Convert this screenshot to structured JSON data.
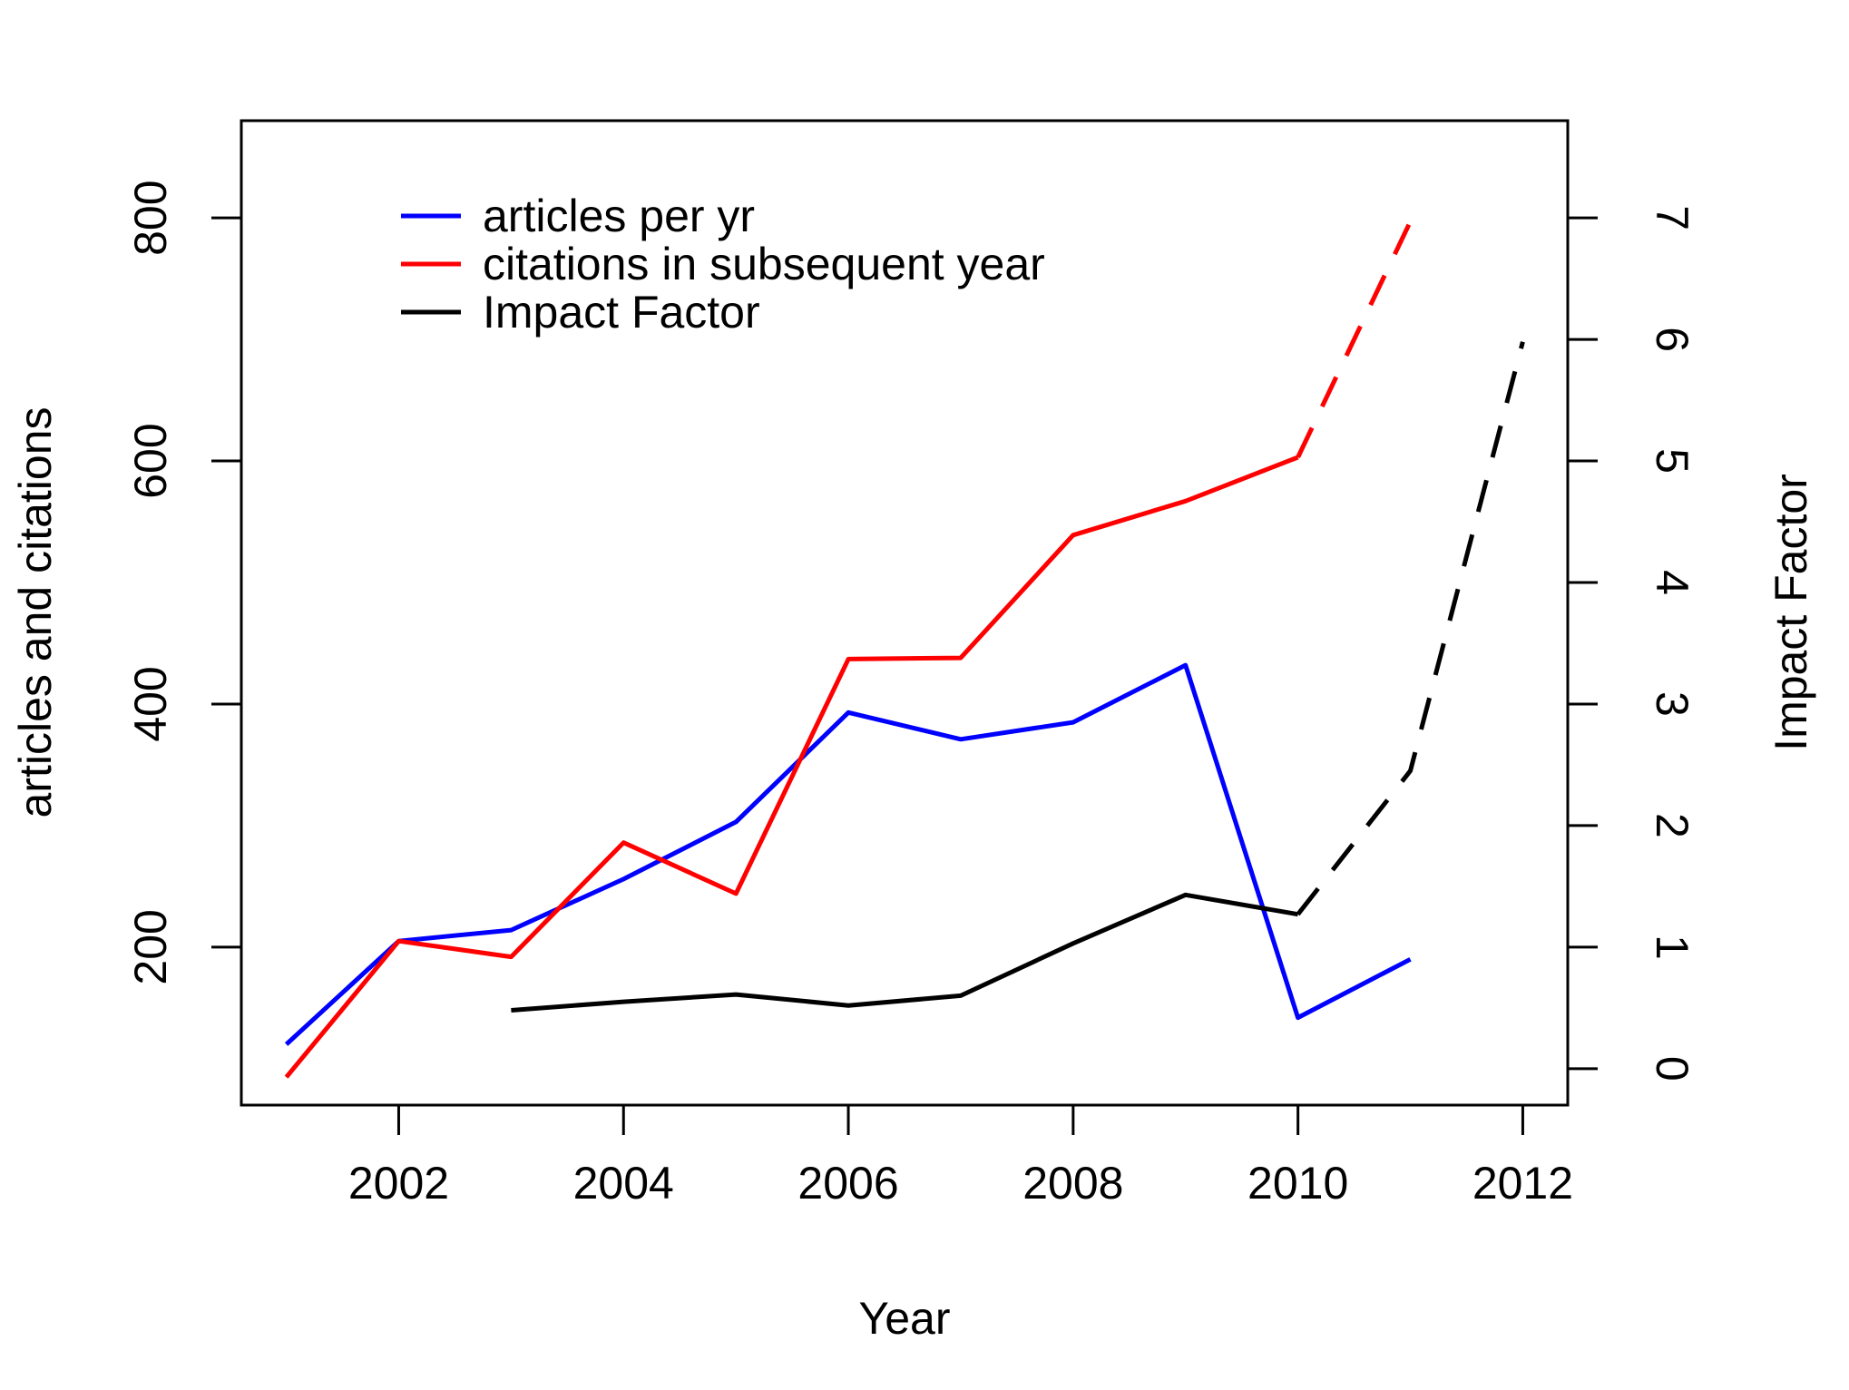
{
  "chart_data": {
    "type": "line",
    "xlabel": "Year",
    "ylabel": "articles and citations",
    "y2label": "Impact Factor",
    "xlim": [
      2000.6,
      2012.4
    ],
    "ylim": [
      70,
      880
    ],
    "y2lim": [
      -0.3,
      7.8
    ],
    "x_ticks": [
      2002,
      2004,
      2006,
      2008,
      2010,
      2012
    ],
    "y_ticks": [
      200,
      400,
      600,
      800
    ],
    "y2_ticks": [
      0,
      1,
      2,
      3,
      4,
      5,
      6,
      7
    ],
    "grid": false,
    "legend_position": "top-left",
    "series": [
      {
        "name": "articles per yr",
        "axis": "left",
        "color": "#0000ff",
        "solid": [
          [
            2001,
            120
          ],
          [
            2002,
            205
          ],
          [
            2003,
            214
          ],
          [
            2004,
            256
          ],
          [
            2005,
            303
          ],
          [
            2006,
            393
          ],
          [
            2007,
            371
          ],
          [
            2008,
            385
          ],
          [
            2009,
            432
          ],
          [
            2010,
            142
          ],
          [
            2011,
            190
          ]
        ],
        "dashed": []
      },
      {
        "name": "citations in subsequent year",
        "axis": "left",
        "color": "#ff0000",
        "solid": [
          [
            2001,
            93
          ],
          [
            2002,
            205
          ],
          [
            2003,
            192
          ],
          [
            2004,
            286
          ],
          [
            2005,
            244
          ],
          [
            2006,
            437
          ],
          [
            2007,
            438
          ],
          [
            2008,
            539
          ],
          [
            2009,
            567
          ],
          [
            2010,
            603
          ]
        ],
        "dashed": [
          [
            2010,
            603
          ],
          [
            2011,
            797
          ]
        ]
      },
      {
        "name": "Impact Factor",
        "axis": "right",
        "color": "#000000",
        "solid": [
          [
            2003,
            0.48
          ],
          [
            2004,
            0.55
          ],
          [
            2005,
            0.61
          ],
          [
            2006,
            0.52
          ],
          [
            2007,
            0.6
          ],
          [
            2008,
            1.03
          ],
          [
            2009,
            1.43
          ],
          [
            2010,
            1.27
          ]
        ],
        "dashed": [
          [
            2010,
            1.27
          ],
          [
            2011,
            2.45
          ],
          [
            2012,
            5.98
          ]
        ]
      }
    ]
  }
}
